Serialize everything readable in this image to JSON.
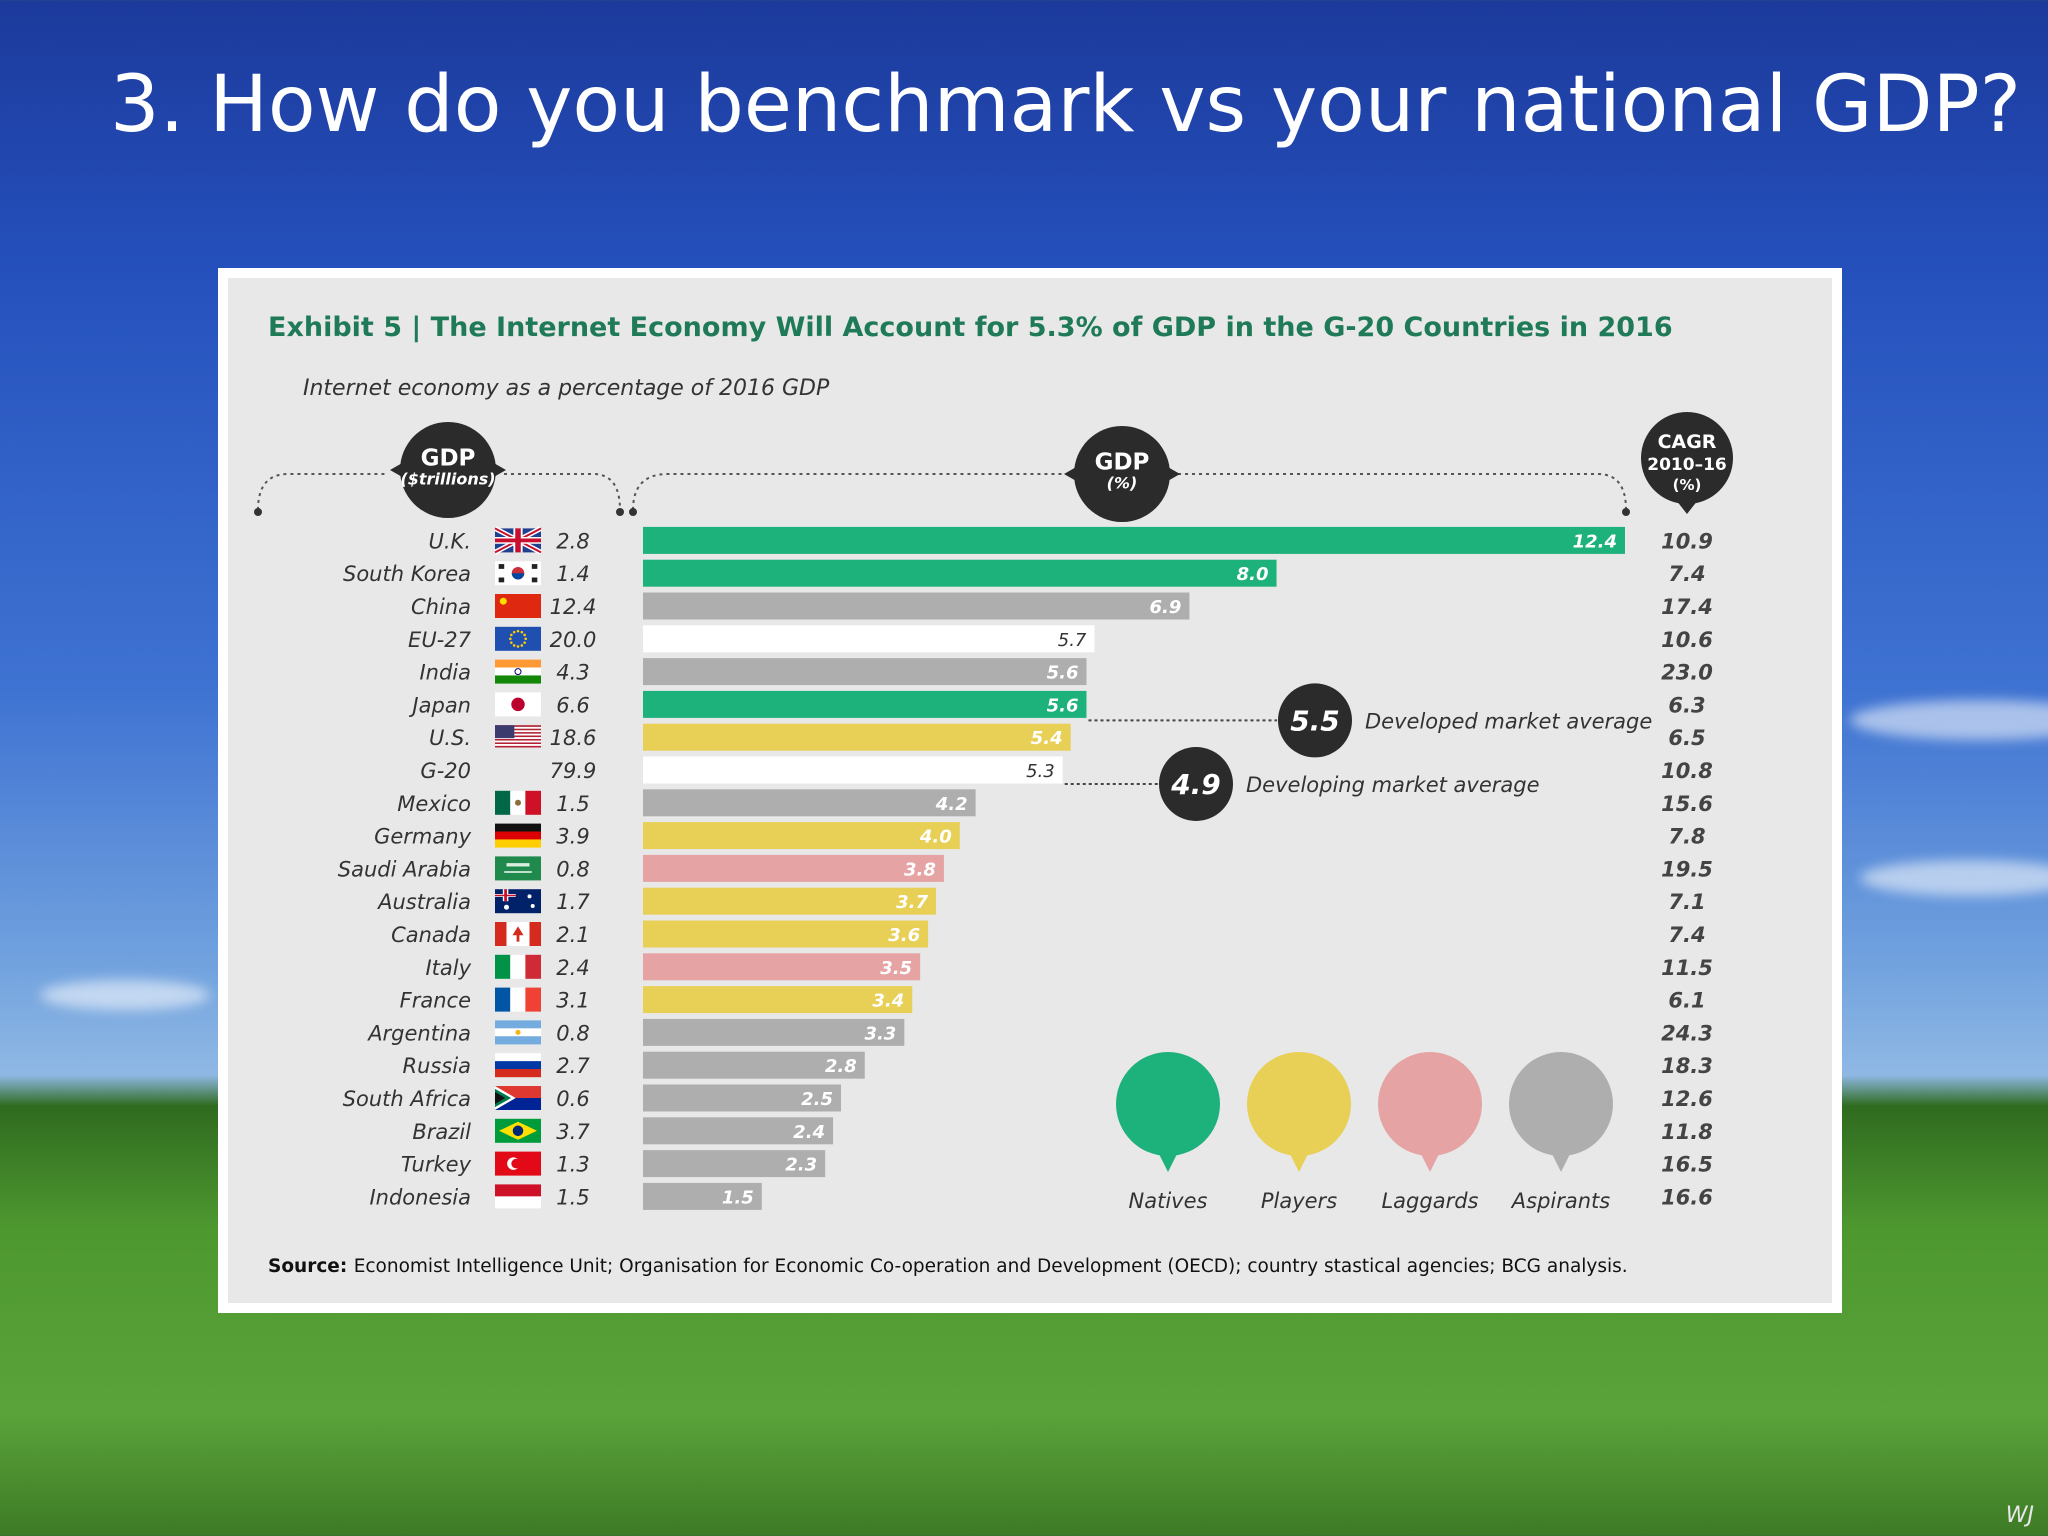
{
  "slide": {
    "title": "3. How do you benchmark vs your national GDP?",
    "watermark": "WJ"
  },
  "colors": {
    "natives": "#1db17b",
    "players": "#e8cf55",
    "laggards": "#e5a3a4",
    "aspirants": "#aeaeae",
    "benchmark": "#ffffff",
    "title_green": "#1f7a57",
    "badge": "#2b2b2b",
    "panel_bg": "#e8e8e9"
  },
  "chart_data": {
    "type": "bar",
    "orientation": "horizontal",
    "exhibit_label": "Exhibit 5",
    "title": "The Internet Economy Will Account for 5.3% of GDP in the G-20 Countries in 2016",
    "subtitle": "Internet economy as a percentage of 2016 GDP",
    "column_headers": {
      "gdp_trillions": [
        "GDP",
        "($trillions)"
      ],
      "gdp_pct": [
        "GDP",
        "(%)"
      ],
      "cagr": [
        "CAGR",
        "2010–16",
        "(%)"
      ]
    },
    "rows": [
      {
        "country": "U.K.",
        "flag": "uk-flag-icon",
        "gdp": "2.8",
        "value": 12.4,
        "label": "12.4",
        "cagr": "10.9",
        "group": "natives"
      },
      {
        "country": "South Korea",
        "flag": "south-korea-flag-icon",
        "gdp": "1.4",
        "value": 8.0,
        "label": "8.0",
        "cagr": "7.4",
        "group": "natives"
      },
      {
        "country": "China",
        "flag": "china-flag-icon",
        "gdp": "12.4",
        "value": 6.9,
        "label": "6.9",
        "cagr": "17.4",
        "group": "aspirants"
      },
      {
        "country": "EU-27",
        "flag": "eu-flag-icon",
        "gdp": "20.0",
        "value": 5.7,
        "label": "5.7",
        "cagr": "10.6",
        "group": "benchmark"
      },
      {
        "country": "India",
        "flag": "india-flag-icon",
        "gdp": "4.3",
        "value": 5.6,
        "label": "5.6",
        "cagr": "23.0",
        "group": "aspirants"
      },
      {
        "country": "Japan",
        "flag": "japan-flag-icon",
        "gdp": "6.6",
        "value": 5.6,
        "label": "5.6",
        "cagr": "6.3",
        "group": "natives"
      },
      {
        "country": "U.S.",
        "flag": "us-flag-icon",
        "gdp": "18.6",
        "value": 5.4,
        "label": "5.4",
        "cagr": "6.5",
        "group": "players"
      },
      {
        "country": "G-20",
        "flag": "",
        "gdp": "79.9",
        "value": 5.3,
        "label": "5.3",
        "cagr": "10.8",
        "group": "benchmark"
      },
      {
        "country": "Mexico",
        "flag": "mexico-flag-icon",
        "gdp": "1.5",
        "value": 4.2,
        "label": "4.2",
        "cagr": "15.6",
        "group": "aspirants"
      },
      {
        "country": "Germany",
        "flag": "germany-flag-icon",
        "gdp": "3.9",
        "value": 4.0,
        "label": "4.0",
        "cagr": "7.8",
        "group": "players"
      },
      {
        "country": "Saudi Arabia",
        "flag": "saudi-arabia-flag-icon",
        "gdp": "0.8",
        "value": 3.8,
        "label": "3.8",
        "cagr": "19.5",
        "group": "laggards"
      },
      {
        "country": "Australia",
        "flag": "australia-flag-icon",
        "gdp": "1.7",
        "value": 3.7,
        "label": "3.7",
        "cagr": "7.1",
        "group": "players"
      },
      {
        "country": "Canada",
        "flag": "canada-flag-icon",
        "gdp": "2.1",
        "value": 3.6,
        "label": "3.6",
        "cagr": "7.4",
        "group": "players"
      },
      {
        "country": "Italy",
        "flag": "italy-flag-icon",
        "gdp": "2.4",
        "value": 3.5,
        "label": "3.5",
        "cagr": "11.5",
        "group": "laggards"
      },
      {
        "country": "France",
        "flag": "france-flag-icon",
        "gdp": "3.1",
        "value": 3.4,
        "label": "3.4",
        "cagr": "6.1",
        "group": "players"
      },
      {
        "country": "Argentina",
        "flag": "argentina-flag-icon",
        "gdp": "0.8",
        "value": 3.3,
        "label": "3.3",
        "cagr": "24.3",
        "group": "aspirants"
      },
      {
        "country": "Russia",
        "flag": "russia-flag-icon",
        "gdp": "2.7",
        "value": 2.8,
        "label": "2.8",
        "cagr": "18.3",
        "group": "aspirants"
      },
      {
        "country": "South Africa",
        "flag": "south-africa-flag-icon",
        "gdp": "0.6",
        "value": 2.5,
        "label": "2.5",
        "cagr": "12.6",
        "group": "aspirants"
      },
      {
        "country": "Brazil",
        "flag": "brazil-flag-icon",
        "gdp": "3.7",
        "value": 2.4,
        "label": "2.4",
        "cagr": "11.8",
        "group": "aspirants"
      },
      {
        "country": "Turkey",
        "flag": "turkey-flag-icon",
        "gdp": "1.3",
        "value": 2.3,
        "label": "2.3",
        "cagr": "16.5",
        "group": "aspirants"
      },
      {
        "country": "Indonesia",
        "flag": "indonesia-flag-icon",
        "gdp": "1.5",
        "value": 1.5,
        "label": "1.5",
        "cagr": "16.6",
        "group": "aspirants"
      }
    ],
    "averages": [
      {
        "value": 5.5,
        "label": "5.5",
        "text": "Developed market average",
        "row_anchor": 5
      },
      {
        "value": 4.9,
        "label": "4.9",
        "text": "Developing market average",
        "row_anchor": 7
      }
    ],
    "legend": [
      {
        "name": "Natives",
        "group": "natives"
      },
      {
        "name": "Players",
        "group": "players"
      },
      {
        "name": "Laggards",
        "group": "laggards"
      },
      {
        "name": "Aspirants",
        "group": "aspirants"
      }
    ],
    "xlim": [
      0,
      12.4
    ],
    "source_label": "Source:",
    "source_text": "Economist Intelligence Unit; Organisation for Economic Co-operation and Development (OECD); country stastical agencies; BCG analysis."
  }
}
